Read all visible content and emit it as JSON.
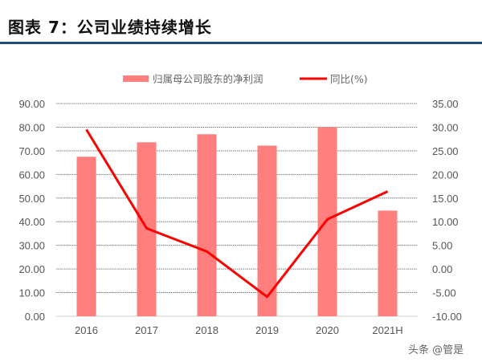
{
  "header": {
    "title": "图表 7：公司业绩持续增长"
  },
  "watermark": "头条 @管是",
  "colors": {
    "bar": "#ff7f7f",
    "line": "#ff0000",
    "rule": "#1f4e79"
  },
  "chart_data": {
    "type": "bar+line",
    "title": "图表 7：公司业绩持续增长",
    "categories": [
      "2016",
      "2017",
      "2018",
      "2019",
      "2020",
      "2021H"
    ],
    "series": [
      {
        "name": "归属母公司股东的净利润",
        "type": "bar",
        "axis": "left",
        "values": [
          67.5,
          73.6,
          77.0,
          72.2,
          80.0,
          44.7
        ]
      },
      {
        "name": "同比(%)",
        "type": "line",
        "axis": "right",
        "values": [
          29.5,
          8.6,
          3.7,
          -5.9,
          10.5,
          16.4
        ]
      }
    ],
    "left_axis": {
      "min": 0,
      "max": 90,
      "step": 10,
      "ticks": [
        "0.00",
        "10.00",
        "20.00",
        "30.00",
        "40.00",
        "50.00",
        "60.00",
        "70.00",
        "80.00",
        "90.00"
      ]
    },
    "right_axis": {
      "min": -10,
      "max": 35,
      "step": 5,
      "ticks": [
        "-10.00",
        "-5.00",
        "0.00",
        "5.00",
        "10.00",
        "15.00",
        "20.00",
        "25.00",
        "30.00",
        "35.00"
      ]
    },
    "grid": true,
    "legend_position": "top"
  }
}
